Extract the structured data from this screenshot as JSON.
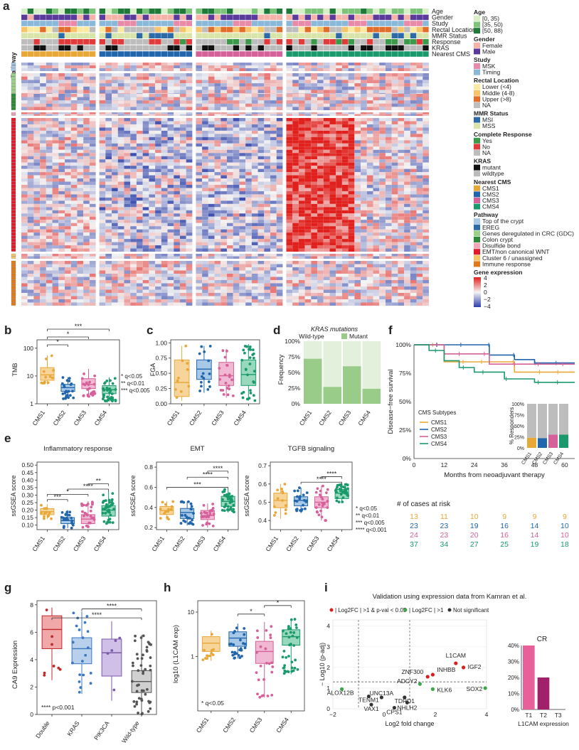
{
  "colors": {
    "cms1": "#e8a838",
    "cms2": "#2166ac",
    "cms3": "#d6609a",
    "cms4": "#1a9a6c",
    "cms1_box": "#f6d49a",
    "cms2_box": "#a8c8e8",
    "cms3_box": "#f0b8d2",
    "cms4_box": "#98d8bc",
    "heat_lo": "#2b3ea8",
    "heat_mid": "#f4f4f4",
    "heat_hi": "#e0201c",
    "kras_mut": "#111111",
    "kras_wt": "#bbbbbb",
    "light_green": "#e2f0dc",
    "dark_green": "#98cc88",
    "grey": "#bdbdbd",
    "red_dot": "#d62020",
    "green_dot": "#3aa84a",
    "cr_t1": "#e8609a",
    "cr_t2": "#a0206a"
  },
  "panel_a": {
    "label": "a",
    "track_labels": [
      "Age",
      "Gender",
      "Study",
      "Rectal Location",
      "MMR Status",
      "Response",
      "KRAS",
      "Nearest CMS"
    ],
    "pathway_label": "Pathway",
    "legend": [
      {
        "title": "Age",
        "items": [
          {
            "label": "[0, 35)",
            "color": "#d7f0c8"
          },
          {
            "label": "[35, 50)",
            "color": "#7cc47a"
          },
          {
            "label": "[50, 88)",
            "color": "#1f7a3a"
          }
        ]
      },
      {
        "title": "Gender",
        "items": [
          {
            "label": "Female",
            "color": "#f6b2a8"
          },
          {
            "label": "Male",
            "color": "#5a3a9a"
          }
        ]
      },
      {
        "title": "Study",
        "items": [
          {
            "label": "MSK",
            "color": "#e88aa8"
          },
          {
            "label": "Timing",
            "color": "#8ab8d8"
          }
        ]
      },
      {
        "title": "Rectal Location",
        "items": [
          {
            "label": "Lower (<4)",
            "color": "#fbeaa0"
          },
          {
            "label": "Middle (4-8)",
            "color": "#f7c46a"
          },
          {
            "label": "Upper (>8)",
            "color": "#e36e2a"
          },
          {
            "label": "NA",
            "color": "#bdbdbd"
          }
        ]
      },
      {
        "title": "MMR Status",
        "items": [
          {
            "label": "MSI",
            "color": "#2c6aa8"
          },
          {
            "label": "MSS",
            "color": "#d8e4a8"
          }
        ]
      },
      {
        "title": "Complete Response",
        "items": [
          {
            "label": "Yes",
            "color": "#3a9a4a"
          },
          {
            "label": "No",
            "color": "#e03a3a"
          },
          {
            "label": "NA",
            "color": "#bdbdbd"
          }
        ]
      },
      {
        "title": "KRAS",
        "items": [
          {
            "label": "mutant",
            "color": "#111111"
          },
          {
            "label": "wildtype",
            "color": "#bbbbbb"
          }
        ]
      },
      {
        "title": "Nearest CMS",
        "items": [
          {
            "label": "CMS1",
            "color": "#e8a838"
          },
          {
            "label": "CMS2",
            "color": "#2166ac"
          },
          {
            "label": "CMS3",
            "color": "#d6609a"
          },
          {
            "label": "CMS4",
            "color": "#1a9a6c"
          }
        ]
      },
      {
        "title": "Pathway",
        "items": [
          {
            "label": "Top of the crypt",
            "color": "#a8c8e8"
          },
          {
            "label": "EREG",
            "color": "#2c6aa8"
          },
          {
            "label": "Genes deregulated in CRC (GDC)",
            "color": "#9ad08a"
          },
          {
            "label": "Colon crypt",
            "color": "#2e8a3a"
          },
          {
            "label": "Disulfide bond",
            "color": "#f0a8b8"
          },
          {
            "label": "EMT/non canonical WNT",
            "color": "#e01a2a"
          },
          {
            "label": "Cluster 6 / unassigned",
            "color": "#f4c468"
          },
          {
            "label": "Immune response",
            "color": "#e07a1a"
          }
        ]
      }
    ],
    "gene_expression_title": "Gene expression",
    "gene_expression_ticks": [
      "4",
      "2",
      "0",
      "−2",
      "−4"
    ]
  },
  "panel_b": {
    "label": "b",
    "ylabel": "TMB",
    "yticks": [
      "100",
      "10",
      "1"
    ],
    "categories": [
      "CMS1",
      "CMS2",
      "CMS3",
      "CMS4"
    ],
    "sig": [
      "***",
      "*",
      "*"
    ],
    "notes": [
      "* q<0.05",
      "** q<0.01",
      "*** q<0.005"
    ],
    "chart_data": {
      "type": "box",
      "ylog": true,
      "ylim": [
        1,
        200
      ],
      "boxes": [
        {
          "q1": 7,
          "median": 11,
          "q3": 20,
          "lo": 5,
          "hi": 55
        },
        {
          "q1": 2.8,
          "median": 3.8,
          "q3": 5,
          "lo": 1.5,
          "hi": 9
        },
        {
          "q1": 3.5,
          "median": 5,
          "q3": 8,
          "lo": 1.8,
          "hi": 18
        },
        {
          "q1": 2.3,
          "median": 3.2,
          "q3": 4.5,
          "lo": 1.2,
          "hi": 9
        }
      ]
    }
  },
  "panel_c": {
    "label": "c",
    "ylabel": "FGA",
    "yticks": [
      "1.00",
      "0.75",
      "0.50",
      "0.25",
      "0.00"
    ],
    "categories": [
      "CMS1",
      "CMS2",
      "CMS3",
      "CMS4"
    ],
    "chart_data": {
      "type": "box",
      "ylim": [
        0,
        1.05
      ],
      "boxes": [
        {
          "q1": 0.12,
          "median": 0.35,
          "q3": 0.72,
          "lo": 0.05,
          "hi": 0.95
        },
        {
          "q1": 0.4,
          "median": 0.57,
          "q3": 0.72,
          "lo": 0.18,
          "hi": 0.95
        },
        {
          "q1": 0.3,
          "median": 0.46,
          "q3": 0.68,
          "lo": 0.1,
          "hi": 0.9
        },
        {
          "q1": 0.3,
          "median": 0.48,
          "q3": 0.72,
          "lo": 0.05,
          "hi": 0.98
        }
      ]
    }
  },
  "panel_d": {
    "label": "d",
    "title": "KRAS mutations",
    "legend_wild": "Wild-type",
    "legend_mutant": "Mutant",
    "ylabel": "Frequency",
    "yticks": [
      "100%",
      "75%",
      "50%",
      "25%",
      "0%"
    ],
    "categories": [
      "CMS1",
      "CMS2",
      "CMS3",
      "CMS4"
    ],
    "chart_data": {
      "type": "bar",
      "stacked": true,
      "mutant_fraction": [
        0.72,
        0.27,
        0.6,
        0.24
      ]
    }
  },
  "panel_e": {
    "label": "e",
    "ylabel": "ssGSEA score",
    "categories": [
      "CMS1",
      "CMS2",
      "CMS3",
      "CMS4"
    ],
    "plots": [
      {
        "title": "Inflammatory response",
        "yticks": [
          "0.50",
          "0.45",
          "0.40",
          "0.35",
          "0.30",
          "0.25",
          "0.20",
          "0.15",
          "0.10"
        ],
        "sig": [
          "***",
          "*",
          "****",
          "**"
        ],
        "chart_data": {
          "type": "box",
          "ylim": [
            0.07,
            0.52
          ],
          "boxes": [
            {
              "q1": 0.17,
              "median": 0.19,
              "q3": 0.21,
              "lo": 0.14,
              "hi": 0.24
            },
            {
              "q1": 0.11,
              "median": 0.13,
              "q3": 0.15,
              "lo": 0.08,
              "hi": 0.2
            },
            {
              "q1": 0.11,
              "median": 0.14,
              "q3": 0.17,
              "lo": 0.08,
              "hi": 0.26
            },
            {
              "q1": 0.16,
              "median": 0.2,
              "q3": 0.23,
              "lo": 0.11,
              "hi": 0.33
            }
          ]
        }
      },
      {
        "title": "EMT",
        "yticks": [
          "0.8",
          "0.6",
          "0.4",
          "0.2"
        ],
        "sig": [
          "****",
          "****",
          "***"
        ],
        "chart_data": {
          "type": "box",
          "ylim": [
            0.18,
            0.85
          ],
          "boxes": [
            {
              "q1": 0.33,
              "median": 0.37,
              "q3": 0.41,
              "lo": 0.28,
              "hi": 0.46
            },
            {
              "q1": 0.29,
              "median": 0.35,
              "q3": 0.39,
              "lo": 0.22,
              "hi": 0.46
            },
            {
              "q1": 0.28,
              "median": 0.32,
              "q3": 0.37,
              "lo": 0.2,
              "hi": 0.44
            },
            {
              "q1": 0.41,
              "median": 0.46,
              "q3": 0.51,
              "lo": 0.35,
              "hi": 0.58
            }
          ]
        }
      },
      {
        "title": "TGFB signaling",
        "yticks": [
          "0.7",
          "0.6",
          "0.5",
          "0.4"
        ],
        "sig": [
          "****",
          "****"
        ],
        "chart_data": {
          "type": "box",
          "ylim": [
            0.35,
            0.72
          ],
          "boxes": [
            {
              "q1": 0.47,
              "median": 0.51,
              "q3": 0.55,
              "lo": 0.41,
              "hi": 0.6
            },
            {
              "q1": 0.48,
              "median": 0.51,
              "q3": 0.53,
              "lo": 0.44,
              "hi": 0.58
            },
            {
              "q1": 0.47,
              "median": 0.5,
              "q3": 0.53,
              "lo": 0.4,
              "hi": 0.59
            },
            {
              "q1": 0.52,
              "median": 0.55,
              "q3": 0.57,
              "lo": 0.5,
              "hi": 0.6
            }
          ]
        }
      }
    ],
    "notes": [
      "* q<0.05",
      "** q<0.01",
      "*** q<0.005",
      "**** q<0.001"
    ]
  },
  "panel_f": {
    "label": "f",
    "ylabel": "Disease−free survival",
    "xlabel": "Months from neoadjuvant therapy",
    "yticks": [
      "100%",
      "75%",
      "50%",
      "25%",
      "0%"
    ],
    "xticks": [
      "0",
      "12",
      "24",
      "36",
      "48",
      "60"
    ],
    "legend_title": "CMS Subtypes",
    "legend": [
      "CMS1",
      "CMS2",
      "CMS3",
      "CMS4"
    ],
    "inset_ylabel": "% Responders",
    "inset_yticks": [
      "100%",
      "75%",
      "50%",
      "25%",
      "0%"
    ],
    "risk_title": "# of cases at risk",
    "risk_table": [
      [
        "13",
        "11",
        "10",
        "9",
        "9",
        "9"
      ],
      [
        "23",
        "23",
        "19",
        "16",
        "14",
        "10"
      ],
      [
        "24",
        "23",
        "20",
        "16",
        "14",
        "10"
      ],
      [
        "37",
        "34",
        "27",
        "25",
        "19",
        "18"
      ]
    ],
    "chart_data": {
      "type": "line",
      "x": [
        0,
        12,
        24,
        36,
        48,
        60
      ],
      "series": [
        {
          "name": "CMS1",
          "x": [
            0,
            10,
            12,
            24,
            40,
            48,
            64
          ],
          "y": [
            1,
            1,
            0.85,
            0.85,
            0.76,
            0.76,
            0.76
          ]
        },
        {
          "name": "CMS2",
          "x": [
            0,
            24,
            30,
            40,
            48,
            64
          ],
          "y": [
            1,
            1,
            0.91,
            0.87,
            0.84,
            0.84
          ]
        },
        {
          "name": "CMS3",
          "x": [
            0,
            8,
            12,
            30,
            48,
            64
          ],
          "y": [
            1,
            1,
            0.92,
            0.83,
            0.83,
            0.83
          ]
        },
        {
          "name": "CMS4",
          "x": [
            0,
            6,
            12,
            18,
            24,
            36,
            48,
            64
          ],
          "y": [
            1,
            0.95,
            0.86,
            0.8,
            0.76,
            0.7,
            0.67,
            0.67
          ]
        }
      ],
      "inset": {
        "type": "bar",
        "stacked": true,
        "responders": [
          0.23,
          0.22,
          0.3,
          0.3
        ]
      }
    }
  },
  "panel_g": {
    "label": "g",
    "ylabel": "CA9 Expression",
    "yticks": [
      "8",
      "6",
      "4",
      "2",
      "0"
    ],
    "categories": [
      "Double",
      "KRAS",
      "PIK3CA",
      "Wild-type"
    ],
    "sig": [
      "****",
      "****"
    ],
    "note": "**** p<0.001",
    "chart_data": {
      "type": "box",
      "ylim": [
        0,
        8.3
      ],
      "boxes": [
        {
          "q1": 4.8,
          "median": 6.2,
          "q3": 7.2,
          "lo": 2.5,
          "hi": 7.8
        },
        {
          "q1": 3.7,
          "median": 4.8,
          "q3": 5.6,
          "lo": 1.5,
          "hi": 7.5
        },
        {
          "q1": 2.8,
          "median": 4.5,
          "q3": 5.5,
          "lo": 1.0,
          "hi": 6.8
        },
        {
          "q1": 1.6,
          "median": 2.4,
          "q3": 3.2,
          "lo": 0,
          "hi": 5.8
        }
      ]
    }
  },
  "panel_h": {
    "label": "h",
    "ylabel": "log10 (L1CAM exp)",
    "yticks": [
      "10",
      "1"
    ],
    "categories": [
      "CMS1",
      "CMS2",
      "CMS3",
      "CMS4"
    ],
    "sig": [
      "*",
      "*"
    ],
    "note": "* q<0.05",
    "chart_data": {
      "type": "box",
      "ylog": true,
      "ylim": [
        0.06,
        18
      ],
      "boxes": [
        {
          "q1": 1.3,
          "median": 2.0,
          "q3": 2.8,
          "lo": 0.8,
          "hi": 3.8
        },
        {
          "q1": 1.7,
          "median": 2.6,
          "q3": 3.6,
          "lo": 0.9,
          "hi": 5.5
        },
        {
          "q1": 0.7,
          "median": 1.3,
          "q3": 2.2,
          "lo": 0.12,
          "hi": 6.0
        },
        {
          "q1": 1.8,
          "median": 2.8,
          "q3": 4.0,
          "lo": 0.4,
          "hi": 7.0
        }
      ]
    }
  },
  "panel_i": {
    "label": "i",
    "title": "Validation using expression data from Kamran et al.",
    "legend": [
      "| Log2FC | >1 & p-val < 0.05",
      "| Log2FC | >1",
      "Not significant"
    ],
    "ylabel": "− Log10 (p-adj)",
    "xlabel": "Log2 fold change",
    "xticks": [
      "−2",
      "0",
      "2",
      "4"
    ],
    "yticks": [
      "4",
      "3",
      "2",
      "1",
      "0"
    ],
    "bar_title": "CR",
    "bar_yticks": [
      "40%",
      "30%",
      "20%",
      "10%",
      "0%"
    ],
    "bar_cats": [
      "T1",
      "T2",
      "T3"
    ],
    "bar_xlabel": "L1CAM expression",
    "chart_data": {
      "type": "scatter",
      "points": [
        {
          "label": "L1CAM",
          "x": 2.8,
          "y": 2.2,
          "cls": "sig"
        },
        {
          "label": "IGF2",
          "x": 3.1,
          "y": 2.0,
          "cls": "sig"
        },
        {
          "label": "INHBB",
          "x": 1.9,
          "y": 1.65,
          "cls": "sig"
        },
        {
          "label": "ZNF300",
          "x": 1.7,
          "y": 1.55,
          "cls": "sig"
        },
        {
          "label": "ADCY2",
          "x": 1.4,
          "y": 1.2,
          "cls": "fc"
        },
        {
          "label": "KLK6",
          "x": 1.9,
          "y": 0.95,
          "cls": "fc"
        },
        {
          "label": "SOX2",
          "x": 3.95,
          "y": 1.0,
          "cls": "fc"
        },
        {
          "label": "ALOX12B",
          "x": -1.65,
          "y": 0.95,
          "cls": "fc"
        },
        {
          "label": "TENM1",
          "x": -0.6,
          "y": 0.6,
          "cls": "ns"
        },
        {
          "label": "UNC13A",
          "x": -0.1,
          "y": 0.55,
          "cls": "ns"
        },
        {
          "label": "VAX1",
          "x": -0.5,
          "y": 0.2,
          "cls": "ns"
        },
        {
          "label": "CPS1",
          "x": 0.4,
          "y": 0.05,
          "cls": "ns"
        },
        {
          "label": "TDRD1",
          "x": 0.8,
          "y": 0.55,
          "cls": "ns"
        },
        {
          "label": "NHLH2",
          "x": 0.9,
          "y": 0.3,
          "cls": "ns"
        }
      ],
      "xlim": [
        -2,
        4
      ],
      "ylim": [
        0,
        4.3
      ],
      "bar": {
        "type": "bar",
        "categories": [
          "T1",
          "T2",
          "T3"
        ],
        "values": [
          0.4,
          0.2,
          0.0
        ]
      }
    }
  }
}
